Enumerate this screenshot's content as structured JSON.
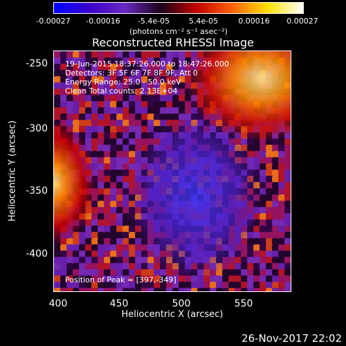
{
  "colorbar": {
    "ticks": [
      "-0.00027",
      "-0.00016",
      "-5.4e-05",
      "5.4e-05",
      "0.00016",
      "0.00027"
    ],
    "units": "(photons cm⁻² s⁻¹ asec⁻²)"
  },
  "title": "Reconstructed RHESSI Image",
  "annotations": {
    "time": "19-Jun-2015 18:37:26.000 to 18:47:26.000",
    "detectors": "Detectors: 3F 5F 6F 7F 8F 9F, Att 0",
    "energy": "Energy Range: 25.0 - 50.0 keV",
    "clean": "Clean     Total counts: 2.13E+04",
    "peak": "Position of Peak = [397,-349]"
  },
  "axes": {
    "xlabel": "Heliocentric X (arcsec)",
    "ylabel": "Heliocentric Y (arcsec)",
    "xticks": [
      "400",
      "450",
      "500",
      "550"
    ],
    "yticks": [
      "-250",
      "-300",
      "-350",
      "-400"
    ]
  },
  "footer": "26-Nov-2017 22:02",
  "colors": {
    "colormap": [
      "#0000ff",
      "#3a00cc",
      "#6a28c0",
      "#1a0018",
      "#c00000",
      "#ff6000",
      "#ffe000",
      "#ffffff"
    ]
  }
}
